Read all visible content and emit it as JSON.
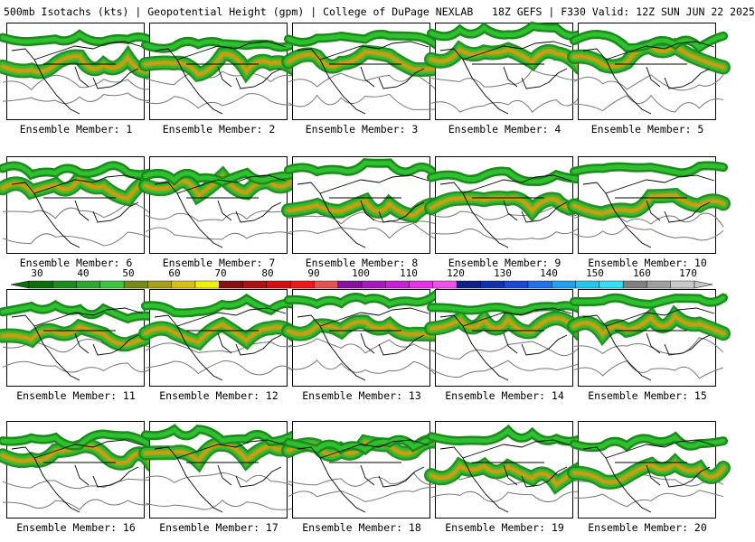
{
  "header": {
    "title": "500mb Isotachs (kts) | Geopotential Height (gpm) | College of DuPage NEXLAB   18Z GEFS | F330 Valid: 12Z SUN JUN 22 2025"
  },
  "members": [
    "Ensemble Member: 1",
    "Ensemble Member: 2",
    "Ensemble Member: 3",
    "Ensemble Member: 4",
    "Ensemble Member: 5",
    "Ensemble Member: 6",
    "Ensemble Member: 7",
    "Ensemble Member: 8",
    "Ensemble Member: 9",
    "Ensemble Member: 10",
    "Ensemble Member: 11",
    "Ensemble Member: 12",
    "Ensemble Member: 13",
    "Ensemble Member: 14",
    "Ensemble Member: 15",
    "Ensemble Member: 16",
    "Ensemble Member: 17",
    "Ensemble Member: 18",
    "Ensemble Member: 19",
    "Ensemble Member: 20"
  ],
  "legend": {
    "labels": [
      "30",
      "40",
      "50",
      "60",
      "70",
      "80",
      "90",
      "100",
      "110",
      "120",
      "130",
      "140",
      "150",
      "160",
      "170"
    ],
    "colors": [
      "#0a6e0a",
      "#1c8c1c",
      "#2aaa2a",
      "#3cc83c",
      "#7a8a1a",
      "#a8a018",
      "#d4c010",
      "#f0f000",
      "#8a1010",
      "#b01010",
      "#d41010",
      "#f01818",
      "#e85050",
      "#8a10a0",
      "#a818c0",
      "#c820d8",
      "#e830e8",
      "#f050f0",
      "#10208a",
      "#1030b0",
      "#1848d8",
      "#2070f0",
      "#20a0f0",
      "#20c8f0",
      "#30e0f8",
      "#808080",
      "#a0a0a0",
      "#c8c8c8"
    ]
  }
}
